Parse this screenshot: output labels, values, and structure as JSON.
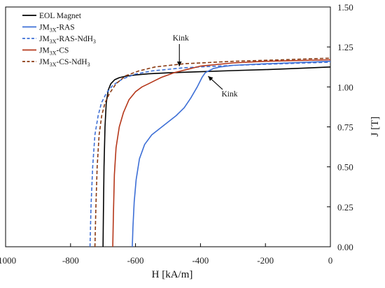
{
  "chart_data": {
    "type": "line",
    "xlabel": "H [kA/m]",
    "ylabel": "J [T]",
    "xlim": [
      -1000,
      0
    ],
    "ylim": [
      0,
      1.5
    ],
    "xticks": [
      "-1000",
      "-800",
      "-600",
      "-400",
      "-200",
      "0"
    ],
    "yticks": [
      "0.00",
      "0.25",
      "0.50",
      "0.75",
      "1.00",
      "1.25",
      "1.50"
    ],
    "grid": false,
    "legend": "top-left",
    "series": [
      {
        "name": "EOL Magnet",
        "color": "#000000",
        "dash": "solid",
        "x": [
          -700,
          -699,
          -697,
          -694,
          -690,
          -684,
          -676,
          -664,
          -650,
          -630,
          -600,
          -560,
          -500,
          -400,
          -300,
          -200,
          -100,
          0
        ],
        "y": [
          0.0,
          0.2,
          0.5,
          0.75,
          0.9,
          0.98,
          1.02,
          1.045,
          1.058,
          1.067,
          1.075,
          1.082,
          1.088,
          1.095,
          1.102,
          1.108,
          1.116,
          1.125
        ]
      },
      {
        "name": "JM3X-RAS",
        "color": "#3d6fd6",
        "dash": "solid",
        "x": [
          -610,
          -608,
          -604,
          -598,
          -588,
          -572,
          -550,
          -525,
          -500,
          -475,
          -450,
          -430,
          -410,
          -395,
          -385,
          -375,
          -360,
          -340,
          -300,
          -200,
          -100,
          0
        ],
        "y": [
          0.0,
          0.12,
          0.28,
          0.42,
          0.55,
          0.64,
          0.7,
          0.74,
          0.78,
          0.82,
          0.87,
          0.93,
          1.0,
          1.06,
          1.09,
          1.1,
          1.115,
          1.125,
          1.135,
          1.145,
          1.152,
          1.16
        ]
      },
      {
        "name": "JM3X-RAS-NdH3",
        "color": "#3d6fd6",
        "dash": "dashed",
        "x": [
          -740,
          -737,
          -732,
          -725,
          -715,
          -705,
          -690,
          -670,
          -640,
          -600,
          -550,
          -450,
          -300,
          -150,
          0
        ],
        "y": [
          0.0,
          0.25,
          0.5,
          0.7,
          0.82,
          0.9,
          0.96,
          1.01,
          1.05,
          1.08,
          1.1,
          1.12,
          1.135,
          1.145,
          1.155
        ]
      },
      {
        "name": "JM3X-CS",
        "color": "#b5371a",
        "dash": "solid",
        "x": [
          -670,
          -668,
          -665,
          -660,
          -650,
          -637,
          -620,
          -600,
          -580,
          -560,
          -540,
          -520,
          -500,
          -480,
          -460,
          -440,
          -420,
          -400,
          -300,
          -200,
          -100,
          0
        ],
        "y": [
          0.0,
          0.2,
          0.45,
          0.62,
          0.75,
          0.84,
          0.92,
          0.97,
          1.0,
          1.02,
          1.04,
          1.06,
          1.075,
          1.09,
          1.1,
          1.11,
          1.12,
          1.13,
          1.15,
          1.16,
          1.165,
          1.17
        ]
      },
      {
        "name": "JM3X-CS-NdH3",
        "color": "#8a3a12",
        "dash": "dashed",
        "x": [
          -725,
          -722,
          -718,
          -712,
          -704,
          -694,
          -680,
          -660,
          -630,
          -590,
          -540,
          -450,
          -300,
          -150,
          0
        ],
        "y": [
          0.0,
          0.25,
          0.5,
          0.7,
          0.82,
          0.9,
          0.96,
          1.02,
          1.07,
          1.1,
          1.125,
          1.145,
          1.16,
          1.17,
          1.18
        ]
      }
    ],
    "legend_entries": [
      {
        "label_main": "EOL Magnet",
        "label_sub": "",
        "label_rest": "",
        "label_sub2": ""
      },
      {
        "label_main": "JM",
        "label_sub": "3X",
        "label_rest": "-RAS",
        "label_sub2": ""
      },
      {
        "label_main": "JM",
        "label_sub": "3X",
        "label_rest": "-RAS-NdH",
        "label_sub2": "3"
      },
      {
        "label_main": "JM",
        "label_sub": "3X",
        "label_rest": "-CS",
        "label_sub2": ""
      },
      {
        "label_main": "JM",
        "label_sub": "3X",
        "label_rest": "-CS-NdH",
        "label_sub2": "3"
      }
    ],
    "annotations": [
      {
        "text": "Kink",
        "x": -465,
        "y": 1.125
      },
      {
        "text": "Kink",
        "x": -385,
        "y": 1.08
      }
    ]
  }
}
